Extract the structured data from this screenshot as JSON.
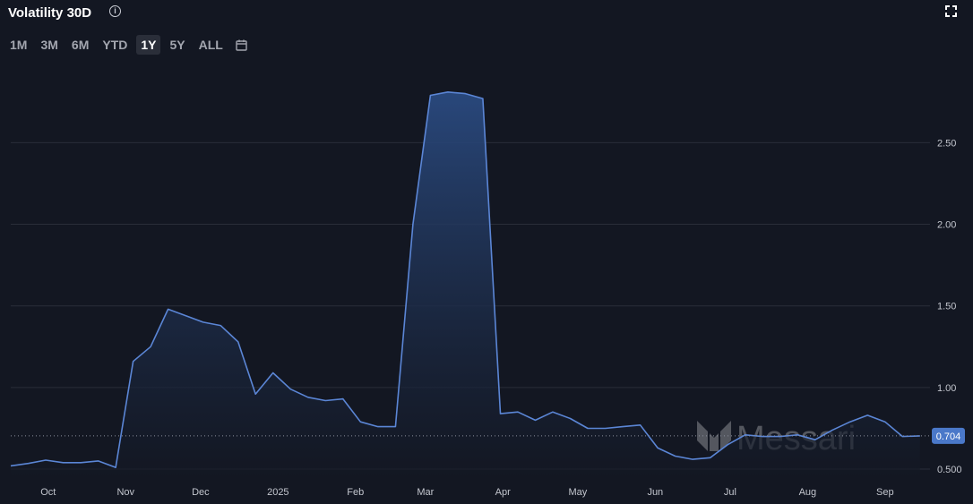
{
  "header": {
    "title": "Volatility 30D",
    "info_icon": "info-icon",
    "fullscreen_icon": "fullscreen-icon"
  },
  "range_selector": {
    "options": [
      "1M",
      "3M",
      "6M",
      "YTD",
      "1Y",
      "5Y",
      "ALL"
    ],
    "active": "1Y",
    "calendar_icon": "calendar-icon"
  },
  "watermark": "Messari",
  "colors": {
    "background": "#131722",
    "line": "#5b86d6",
    "area_top": "#2a4a80",
    "area_bottom": "#131722",
    "grid": "#2a2e39",
    "last_value_bg": "#4a78c9"
  },
  "chart_data": {
    "type": "area",
    "series": [
      {
        "x": [
          "2024-09-16",
          "2024-09-23",
          "2024-09-30",
          "2024-10-07",
          "2024-10-14",
          "2024-10-21",
          "2024-10-28",
          "2024-11-04",
          "2024-11-11",
          "2024-11-18",
          "2024-11-25",
          "2024-12-02",
          "2024-12-09",
          "2024-12-16",
          "2024-12-23",
          "2024-12-30",
          "2025-01-06",
          "2025-01-13",
          "2025-01-20",
          "2025-01-27",
          "2025-02-03",
          "2025-02-10",
          "2025-02-17",
          "2025-02-24",
          "2025-03-03",
          "2025-03-10",
          "2025-03-17",
          "2025-03-24",
          "2025-03-31",
          "2025-04-07",
          "2025-04-14",
          "2025-04-21",
          "2025-04-28",
          "2025-05-05",
          "2025-05-12",
          "2025-05-19",
          "2025-05-26",
          "2025-06-02",
          "2025-06-09",
          "2025-06-16",
          "2025-06-23",
          "2025-06-30",
          "2025-07-07",
          "2025-07-14",
          "2025-07-21",
          "2025-07-28",
          "2025-08-04",
          "2025-08-11",
          "2025-08-18",
          "2025-08-25",
          "2025-09-01",
          "2025-09-08",
          "2025-09-15"
        ],
        "values": [
          0.52,
          0.535,
          0.555,
          0.54,
          0.54,
          0.55,
          0.51,
          1.16,
          1.25,
          1.48,
          1.44,
          1.4,
          1.38,
          1.28,
          0.96,
          1.09,
          0.99,
          0.94,
          0.92,
          0.93,
          0.79,
          0.76,
          0.76,
          2.0,
          2.79,
          2.81,
          2.8,
          2.77,
          0.84,
          0.85,
          0.8,
          0.85,
          0.81,
          0.75,
          0.75,
          0.76,
          0.77,
          0.63,
          0.58,
          0.56,
          0.57,
          0.65,
          0.71,
          0.7,
          0.7,
          0.71,
          0.68,
          0.74,
          0.79,
          0.83,
          0.79,
          0.7,
          0.704
        ]
      }
    ],
    "x_ticks": [
      {
        "date": "2024-10-01",
        "label": "Oct"
      },
      {
        "date": "2024-11-01",
        "label": "Nov"
      },
      {
        "date": "2024-12-01",
        "label": "Dec"
      },
      {
        "date": "2025-01-01",
        "label": "2025"
      },
      {
        "date": "2025-02-01",
        "label": "Feb"
      },
      {
        "date": "2025-03-01",
        "label": "Mar"
      },
      {
        "date": "2025-04-01",
        "label": "Apr"
      },
      {
        "date": "2025-05-01",
        "label": "May"
      },
      {
        "date": "2025-06-01",
        "label": "Jun"
      },
      {
        "date": "2025-07-01",
        "label": "Jul"
      },
      {
        "date": "2025-08-01",
        "label": "Aug"
      },
      {
        "date": "2025-09-01",
        "label": "Sep"
      }
    ],
    "y_ticks": [
      0.5,
      1.0,
      1.5,
      2.0,
      2.5
    ],
    "y_tick_labels": [
      "0.500",
      "1.00",
      "1.50",
      "2.00",
      "2.50"
    ],
    "xlim": [
      "2024-09-16",
      "2025-09-19"
    ],
    "ylim": [
      0.44,
      2.99
    ],
    "last_value": 0.704,
    "last_value_label": "0.704",
    "grid": "horizontal",
    "axis_side": "right"
  }
}
